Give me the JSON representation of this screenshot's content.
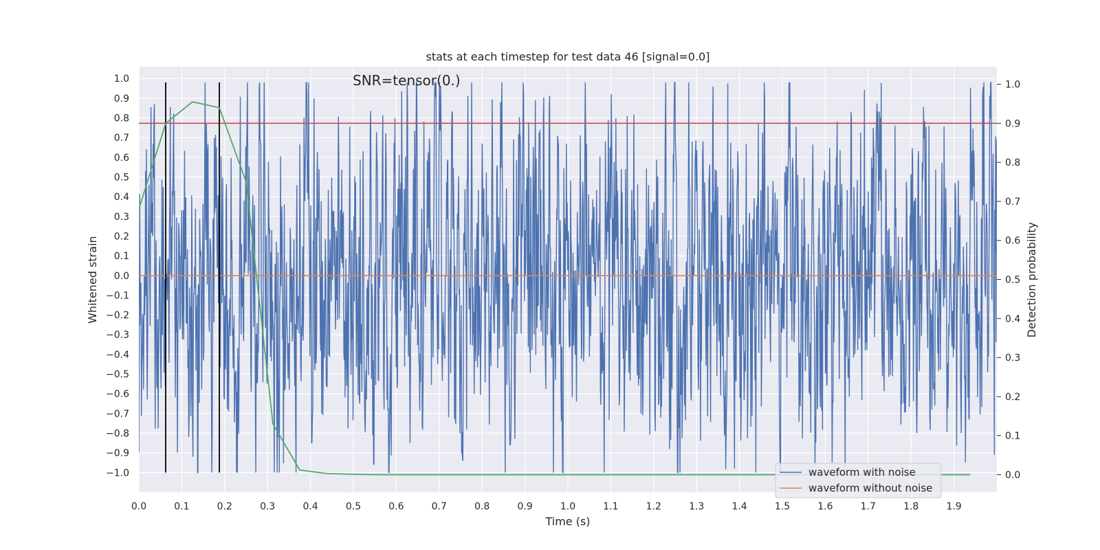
{
  "chart_data": {
    "type": "line",
    "title": "stats at each timestep for test data 46 [signal=0.0]",
    "annotation": "SNR=tensor(0.)",
    "xlabel": "Time (s)",
    "ylabel": "Whitened strain",
    "y2label": "Detection probability",
    "xlim": [
      0.0,
      2.0
    ],
    "ylim": [
      -1.1,
      1.06
    ],
    "y2lim": [
      -0.045,
      1.045
    ],
    "grid": true,
    "legend_location": "lower right",
    "x_ticks": [
      "0.0",
      "0.1",
      "0.2",
      "0.3",
      "0.4",
      "0.5",
      "0.6",
      "0.7",
      "0.8",
      "0.9",
      "1.0",
      "1.1",
      "1.2",
      "1.3",
      "1.4",
      "1.5",
      "1.6",
      "1.7",
      "1.8",
      "1.9"
    ],
    "y_ticks": [
      "1.0",
      "0.9",
      "0.8",
      "0.7",
      "0.6",
      "0.5",
      "0.4",
      "0.3",
      "0.2",
      "0.1",
      "0.0",
      "−0.1",
      "−0.2",
      "−0.3",
      "−0.4",
      "−0.5",
      "−0.6",
      "−0.7",
      "−0.8",
      "−0.9",
      "−1.0"
    ],
    "y2_ticks": [
      "1.0",
      "0.9",
      "0.8",
      "0.7",
      "0.6",
      "0.5",
      "0.4",
      "0.3",
      "0.2",
      "0.1",
      "0.0"
    ],
    "series": [
      {
        "name": "waveform with noise",
        "color": "#4c72b0",
        "note": "dense noise trace sampled across 0-2 s, amplitude within approx [-1.0, 0.98]",
        "envelope": {
          "x_min": 0.0,
          "x_max": 2.0,
          "y_min": -1.0,
          "y_max": 0.98
        }
      },
      {
        "name": "waveform without noise",
        "color": "#dd8452",
        "x": [
          0.0,
          2.0
        ],
        "y": [
          0.0,
          0.0
        ]
      },
      {
        "axis": "right",
        "color": "#55a868",
        "x": [
          0.0,
          0.0625,
          0.125,
          0.1875,
          0.25,
          0.3125,
          0.375,
          0.4375,
          0.5,
          0.5625,
          0.625,
          0.6875,
          0.75,
          0.8125,
          0.875,
          0.9375,
          1.0,
          1.0625,
          1.125,
          1.1875,
          1.25,
          1.3125,
          1.375,
          1.4375,
          1.5,
          1.5625,
          1.625,
          1.6875,
          1.75,
          1.8125,
          1.875,
          1.9375
        ],
        "y": [
          0.68,
          0.9,
          0.955,
          0.94,
          0.75,
          0.13,
          0.012,
          0.003,
          0.001,
          0.0,
          0.0,
          0.0,
          0.0,
          0.0,
          0.0,
          0.0,
          0.0,
          0.0,
          0.0,
          0.0,
          0.0,
          0.0,
          0.0,
          0.0,
          0.0,
          0.0,
          0.0,
          0.0,
          0.0,
          0.0,
          0.0,
          0.0
        ]
      }
    ],
    "hlines": [
      {
        "axis": "right",
        "y": 0.9,
        "color": "#c44e52"
      }
    ],
    "vlines": [
      {
        "x": 0.0625,
        "y_range": [
          -1.0,
          0.98
        ],
        "color": "#000000"
      },
      {
        "x": 0.1875,
        "y_range": [
          -1.0,
          0.98
        ],
        "color": "#000000"
      }
    ]
  }
}
